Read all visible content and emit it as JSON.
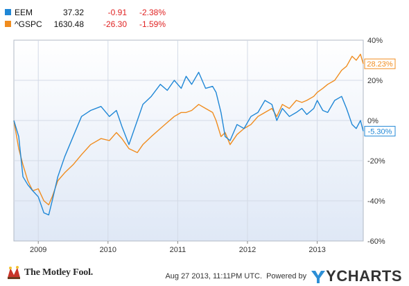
{
  "legend": [
    {
      "symbol": "EEM",
      "price": "37.32",
      "change": "-0.91",
      "pct": "-2.38%",
      "color": "#1f87d6"
    },
    {
      "symbol": "^GSPC",
      "price": "1630.48",
      "change": "-26.30",
      "pct": "-1.59%",
      "color": "#f08c1e"
    }
  ],
  "footer": {
    "brand": "The Motley Fool.",
    "timestamp": "Aug 27 2013, 11:11PM UTC.",
    "powered_by": "Powered by",
    "provider": "YCHARTS"
  },
  "chart_data": {
    "type": "line",
    "x_unit": "year",
    "xlim": [
      2008.65,
      2013.66
    ],
    "ylim": [
      -60,
      40
    ],
    "y_ticks": [
      "40%",
      "20%",
      "0%",
      "-20%",
      "-40%",
      "-60%"
    ],
    "y_tick_values": [
      40,
      20,
      0,
      -20,
      -40,
      -60
    ],
    "x_ticks": [
      "2009",
      "2010",
      "2011",
      "2012",
      "2013"
    ],
    "x_tick_values": [
      2009,
      2010,
      2011,
      2012,
      2013
    ],
    "series": [
      {
        "name": "EEM",
        "color": "#1f87d6",
        "end_label": "-5.30%",
        "x": [
          2008.65,
          2008.72,
          2008.78,
          2008.85,
          2008.92,
          2009.0,
          2009.08,
          2009.15,
          2009.2,
          2009.28,
          2009.38,
          2009.5,
          2009.62,
          2009.75,
          2009.9,
          2010.02,
          2010.12,
          2010.2,
          2010.3,
          2010.42,
          2010.5,
          2010.62,
          2010.75,
          2010.85,
          2010.95,
          2011.05,
          2011.12,
          2011.2,
          2011.3,
          2011.4,
          2011.5,
          2011.55,
          2011.62,
          2011.68,
          2011.75,
          2011.85,
          2011.95,
          2012.05,
          2012.15,
          2012.25,
          2012.35,
          2012.42,
          2012.5,
          2012.6,
          2012.7,
          2012.78,
          2012.85,
          2012.95,
          2013.0,
          2013.08,
          2013.15,
          2013.25,
          2013.35,
          2013.42,
          2013.5,
          2013.56,
          2013.62,
          2013.66
        ],
        "y": [
          0,
          -8,
          -28,
          -32,
          -35,
          -38,
          -46,
          -47,
          -40,
          -28,
          -18,
          -8,
          2,
          5,
          7,
          2,
          5,
          -3,
          -12,
          0,
          8,
          12,
          18,
          15,
          20,
          16,
          22,
          18,
          24,
          16,
          17,
          14,
          4,
          -8,
          -10,
          -2,
          -4,
          2,
          4,
          10,
          8,
          0,
          6,
          2,
          4,
          6,
          3,
          6,
          10,
          5,
          4,
          10,
          12,
          6,
          -2,
          -4,
          0,
          -5.3
        ]
      },
      {
        "name": "^GSPC",
        "color": "#f08c1e",
        "end_label": "28.23%",
        "x": [
          2008.65,
          2008.72,
          2008.78,
          2008.85,
          2008.92,
          2009.0,
          2009.08,
          2009.15,
          2009.2,
          2009.28,
          2009.38,
          2009.5,
          2009.62,
          2009.75,
          2009.9,
          2010.02,
          2010.12,
          2010.2,
          2010.3,
          2010.42,
          2010.5,
          2010.62,
          2010.75,
          2010.85,
          2010.95,
          2011.05,
          2011.12,
          2011.2,
          2011.3,
          2011.4,
          2011.5,
          2011.55,
          2011.62,
          2011.68,
          2011.75,
          2011.85,
          2011.95,
          2012.05,
          2012.15,
          2012.25,
          2012.35,
          2012.42,
          2012.5,
          2012.6,
          2012.7,
          2012.78,
          2012.85,
          2012.95,
          2013.0,
          2013.08,
          2013.15,
          2013.25,
          2013.35,
          2013.42,
          2013.5,
          2013.56,
          2013.62,
          2013.66
        ],
        "y": [
          0,
          -14,
          -22,
          -30,
          -35,
          -34,
          -40,
          -42,
          -38,
          -30,
          -26,
          -22,
          -17,
          -12,
          -9,
          -10,
          -6,
          -9,
          -14,
          -16,
          -12,
          -8,
          -4,
          -1,
          2,
          4,
          4,
          5,
          8,
          6,
          4,
          0,
          -8,
          -6,
          -12,
          -7,
          -4,
          -2,
          2,
          4,
          6,
          2,
          8,
          6,
          10,
          9,
          10,
          12,
          14,
          16,
          18,
          20,
          25,
          27,
          32,
          30,
          33,
          28.23
        ]
      }
    ]
  }
}
